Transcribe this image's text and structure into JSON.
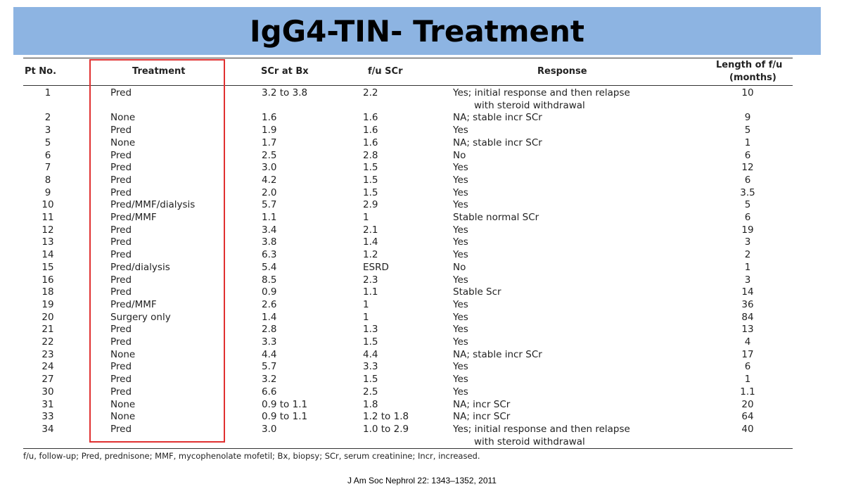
{
  "title": "IgG4-TIN- Treatment",
  "table": {
    "headers": {
      "pt_no": "Pt No.",
      "treatment": "Treatment",
      "scr_bx": "SCr at Bx",
      "fu_scr": "f/u SCr",
      "response": "Response",
      "length_line1": "Length of f/u",
      "length_line2": "(months)"
    },
    "rows": [
      {
        "pt": "1",
        "treatment": "Pred",
        "scr": "3.2 to 3.8",
        "fu": "2.2",
        "response": "Yes; initial response and then relapse",
        "response2": "with steroid withdrawal",
        "length": "10"
      },
      {
        "pt": "2",
        "treatment": "None",
        "scr": "1.6",
        "fu": "1.6",
        "response": "NA; stable incr SCr",
        "length": "9"
      },
      {
        "pt": "3",
        "treatment": "Pred",
        "scr": "1.9",
        "fu": "1.6",
        "response": "Yes",
        "length": "5"
      },
      {
        "pt": "5",
        "treatment": "None",
        "scr": "1.7",
        "fu": "1.6",
        "response": "NA; stable incr SCr",
        "length": "1"
      },
      {
        "pt": "6",
        "treatment": "Pred",
        "scr": "2.5",
        "fu": "2.8",
        "response": "No",
        "length": "6"
      },
      {
        "pt": "7",
        "treatment": "Pred",
        "scr": "3.0",
        "fu": "1.5",
        "response": "Yes",
        "length": "12"
      },
      {
        "pt": "8",
        "treatment": "Pred",
        "scr": "4.2",
        "fu": "1.5",
        "response": "Yes",
        "length": "6"
      },
      {
        "pt": "9",
        "treatment": "Pred",
        "scr": "2.0",
        "fu": "1.5",
        "response": "Yes",
        "length": "3.5"
      },
      {
        "pt": "10",
        "treatment": "Pred/MMF/dialysis",
        "scr": "5.7",
        "fu": "2.9",
        "response": "Yes",
        "length": "5"
      },
      {
        "pt": "11",
        "treatment": "Pred/MMF",
        "scr": "1.1",
        "fu": "1",
        "response": "Stable normal SCr",
        "length": "6"
      },
      {
        "pt": "12",
        "treatment": "Pred",
        "scr": "3.4",
        "fu": "2.1",
        "response": "Yes",
        "length": "19"
      },
      {
        "pt": "13",
        "treatment": "Pred",
        "scr": "3.8",
        "fu": "1.4",
        "response": "Yes",
        "length": "3"
      },
      {
        "pt": "14",
        "treatment": "Pred",
        "scr": "6.3",
        "fu": "1.2",
        "response": "Yes",
        "length": "2"
      },
      {
        "pt": "15",
        "treatment": "Pred/dialysis",
        "scr": "5.4",
        "fu": "ESRD",
        "response": "No",
        "length": "1"
      },
      {
        "pt": "16",
        "treatment": "Pred",
        "scr": "8.5",
        "fu": "2.3",
        "response": "Yes",
        "length": "3"
      },
      {
        "pt": "18",
        "treatment": "Pred",
        "scr": "0.9",
        "fu": "1.1",
        "response": "Stable Scr",
        "length": "14"
      },
      {
        "pt": "19",
        "treatment": "Pred/MMF",
        "scr": "2.6",
        "fu": "1",
        "response": "Yes",
        "length": "36"
      },
      {
        "pt": "20",
        "treatment": "Surgery only",
        "scr": "1.4",
        "fu": "1",
        "response": "Yes",
        "length": "84"
      },
      {
        "pt": "21",
        "treatment": "Pred",
        "scr": "2.8",
        "fu": "1.3",
        "response": "Yes",
        "length": "13"
      },
      {
        "pt": "22",
        "treatment": "Pred",
        "scr": "3.3",
        "fu": "1.5",
        "response": "Yes",
        "length": "4"
      },
      {
        "pt": "23",
        "treatment": "None",
        "scr": "4.4",
        "fu": "4.4",
        "response": "NA; stable incr SCr",
        "length": "17"
      },
      {
        "pt": "24",
        "treatment": "Pred",
        "scr": "5.7",
        "fu": "3.3",
        "response": "Yes",
        "length": "6"
      },
      {
        "pt": "27",
        "treatment": "Pred",
        "scr": "3.2",
        "fu": "1.5",
        "response": "Yes",
        "length": "1"
      },
      {
        "pt": "30",
        "treatment": "Pred",
        "scr": "6.6",
        "fu": "2.5",
        "response": "Yes",
        "length": "1.1"
      },
      {
        "pt": "31",
        "treatment": "None",
        "scr": "0.9 to 1.1",
        "fu": "1.8",
        "response": "NA; incr SCr",
        "length": "20"
      },
      {
        "pt": "33",
        "treatment": "None",
        "scr": "0.9 to 1.1",
        "fu": "1.2 to 1.8",
        "response": "NA; incr SCr",
        "length": "64"
      },
      {
        "pt": "34",
        "treatment": "Pred",
        "scr": "3.0",
        "fu": "1.0 to 2.9",
        "response": "Yes; initial response and then relapse",
        "response2": "with steroid withdrawal",
        "length": "40"
      }
    ]
  },
  "footnote": "f/u, follow-up; Pred, prednisone; MMF, mycophenolate mofetil; Bx, biopsy; SCr, serum creatinine; Incr, increased.",
  "citation": "J Am Soc Nephrol 22: 1343–1352, 2011",
  "colors": {
    "banner": "#8db4e2",
    "highlight": "#e03030"
  }
}
